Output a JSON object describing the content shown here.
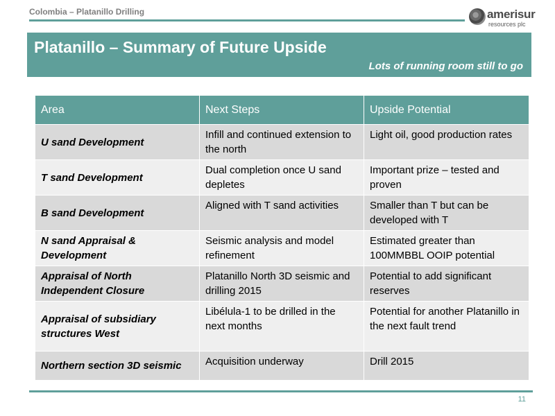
{
  "header": {
    "label": "Colombia – Platanillo Drilling",
    "logo_name": "amerisur",
    "logo_sub": "resources plc"
  },
  "title_bar": {
    "title": "Platanillo – Summary of Future Upside",
    "subtitle": "Lots of running room still to go"
  },
  "table": {
    "columns": [
      "Area",
      "Next Steps",
      "Upside Potential"
    ],
    "rows": [
      {
        "area": "U sand Development",
        "next_steps": "Infill and continued extension to the north",
        "upside": "Light oil, good production rates"
      },
      {
        "area": "T sand Development",
        "next_steps": "Dual completion once U sand depletes",
        "upside": "Important prize – tested and proven"
      },
      {
        "area": "B sand Development",
        "next_steps": "Aligned with T sand activities",
        "upside": "Smaller than T but can be developed with T"
      },
      {
        "area": "N sand Appraisal & Development",
        "next_steps": "Seismic analysis and model refinement",
        "upside": "Estimated greater than 100MMBBL OOIP potential"
      },
      {
        "area": "Appraisal of North Independent Closure",
        "next_steps": "Platanillo North 3D seismic and drilling 2015",
        "upside": "Potential to add significant reserves"
      },
      {
        "area": "Appraisal of subsidiary structures West",
        "next_steps": "Libélula-1 to be drilled in the next months",
        "upside": "Potential for another Platanillo in the next fault trend"
      },
      {
        "area": "Northern section 3D seismic",
        "next_steps": "Acquisition underway",
        "upside": "Drill 2015"
      }
    ]
  },
  "footer": {
    "page_number": "11"
  },
  "colors": {
    "accent": "#5f9f9a",
    "row_dark": "#d9d9d9",
    "row_light": "#efefef"
  }
}
